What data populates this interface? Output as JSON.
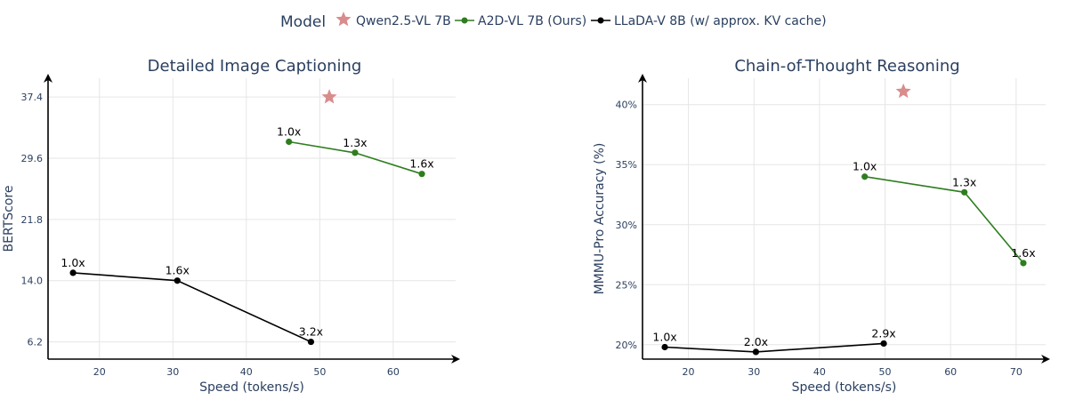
{
  "legend": {
    "title": "Model",
    "items": [
      {
        "name": "Qwen2.5-VL 7B",
        "color": "#d98c8c",
        "marker": "star"
      },
      {
        "name": "A2D-VL 7B (Ours)",
        "color": "#2e7d1f",
        "marker": "circle"
      },
      {
        "name": "LLaDA-V 8B (w/ approx. KV cache)",
        "color": "#000000",
        "marker": "circle"
      }
    ]
  },
  "chart_data": [
    {
      "type": "line",
      "title": "Detailed Image Captioning",
      "xlabel": "Speed (tokens/s)",
      "ylabel": "BERTScore",
      "xlim": [
        13,
        68.5
      ],
      "ylim": [
        4.0,
        39.8
      ],
      "xticks": [
        20,
        30,
        40,
        50,
        60
      ],
      "yticks": [
        6.2,
        14.0,
        21.8,
        29.6,
        37.4
      ],
      "ytick_labels": [
        "6.2",
        "14.0",
        "21.8",
        "29.6",
        "37.4"
      ],
      "grid": true,
      "series": [
        {
          "name": "Qwen2.5-VL 7B",
          "marker": "star",
          "color": "#d98c8c",
          "points": [
            {
              "x": 51.3,
              "y": 37.4,
              "label": ""
            }
          ]
        },
        {
          "name": "A2D-VL 7B (Ours)",
          "marker": "circle",
          "color": "#2e7d1f",
          "points": [
            {
              "x": 45.8,
              "y": 31.7,
              "label": "1.0x"
            },
            {
              "x": 54.8,
              "y": 30.3,
              "label": "1.3x"
            },
            {
              "x": 63.9,
              "y": 27.6,
              "label": "1.6x"
            }
          ]
        },
        {
          "name": "LLaDA-V 8B (w/ approx. KV cache)",
          "marker": "circle",
          "color": "#000000",
          "points": [
            {
              "x": 16.4,
              "y": 15.0,
              "label": "1.0x"
            },
            {
              "x": 30.6,
              "y": 14.0,
              "label": "1.6x"
            },
            {
              "x": 48.8,
              "y": 6.2,
              "label": "3.2x"
            }
          ]
        }
      ]
    },
    {
      "type": "line",
      "title": "Chain-of-Thought Reasoning",
      "xlabel": "Speed (tokens/s)",
      "ylabel": "MMMU-Pro Accuracy (%)",
      "xlim": [
        13,
        74.5
      ],
      "ylim": [
        18.8,
        42.2
      ],
      "xticks": [
        20,
        30,
        40,
        50,
        60,
        70
      ],
      "yticks": [
        20,
        25,
        30,
        35,
        40
      ],
      "ytick_labels": [
        "20%",
        "25%",
        "30%",
        "35%",
        "40%"
      ],
      "grid": true,
      "series": [
        {
          "name": "Qwen2.5-VL 7B",
          "marker": "star",
          "color": "#d98c8c",
          "points": [
            {
              "x": 52.8,
              "y": 41.1,
              "label": ""
            }
          ]
        },
        {
          "name": "A2D-VL 7B (Ours)",
          "marker": "circle",
          "color": "#2e7d1f",
          "points": [
            {
              "x": 46.9,
              "y": 34.0,
              "label": "1.0x"
            },
            {
              "x": 62.1,
              "y": 32.7,
              "label": "1.3x"
            },
            {
              "x": 71.1,
              "y": 26.8,
              "label": "1.6x"
            }
          ]
        },
        {
          "name": "LLaDA-V 8B (w/ approx. KV cache)",
          "marker": "circle",
          "color": "#000000",
          "points": [
            {
              "x": 16.4,
              "y": 19.8,
              "label": "1.0x"
            },
            {
              "x": 30.3,
              "y": 19.4,
              "label": "2.0x"
            },
            {
              "x": 49.8,
              "y": 20.1,
              "label": "2.9x"
            }
          ]
        }
      ]
    }
  ]
}
